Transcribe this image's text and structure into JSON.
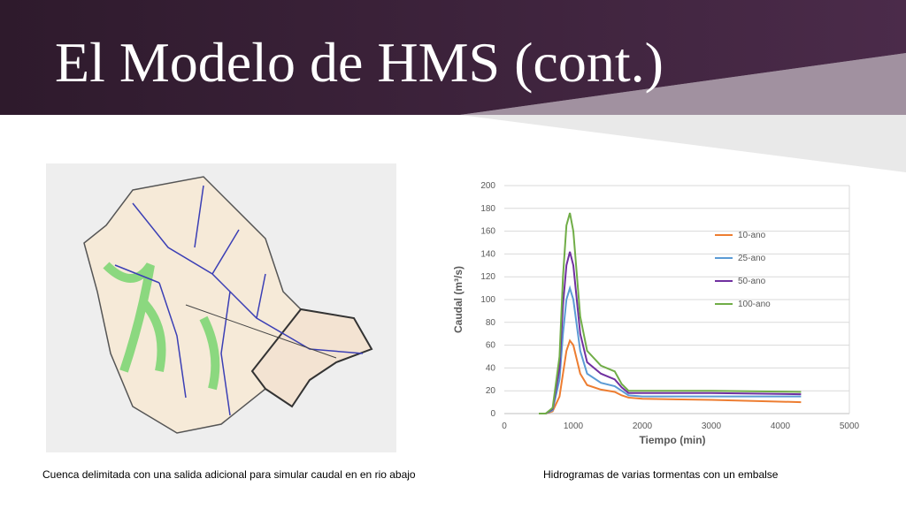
{
  "title": "El Modelo de HMS (cont.)",
  "captions": [
    "Cuenca delimitada con una salida adicional para simular caudal en en rio abajo",
    "Hidrogramas de varias tormentas con un embalse"
  ],
  "chart_data": {
    "type": "line",
    "x_label": "Tiempo (min)",
    "y_label": "Caudal (m³/s)",
    "x": [
      500,
      600,
      700,
      800,
      850,
      900,
      950,
      1000,
      1100,
      1200,
      1400,
      1600,
      1700,
      1800,
      2000,
      3000,
      4300
    ],
    "series": [
      {
        "name": "10-ano",
        "color": "#ed7d31",
        "values": [
          0,
          0,
          2,
          15,
          35,
          55,
          64,
          60,
          35,
          25,
          21,
          19,
          16,
          14,
          13,
          12,
          10
        ]
      },
      {
        "name": "25-ano",
        "color": "#5b9bd5",
        "values": [
          0,
          0,
          3,
          30,
          70,
          100,
          110,
          100,
          55,
          35,
          27,
          24,
          20,
          16,
          15,
          15,
          15
        ]
      },
      {
        "name": "50-ano",
        "color": "#7030a0",
        "values": [
          0,
          0,
          4,
          40,
          95,
          130,
          142,
          130,
          70,
          45,
          35,
          30,
          23,
          18,
          18,
          18,
          17
        ]
      },
      {
        "name": "100-ano",
        "color": "#70ad47",
        "values": [
          0,
          0,
          5,
          50,
          120,
          165,
          176,
          160,
          85,
          55,
          42,
          37,
          26,
          20,
          20,
          20,
          19
        ]
      }
    ],
    "xlim": [
      0,
      5000
    ],
    "xticks": [
      0,
      1000,
      2000,
      3000,
      4000,
      5000
    ],
    "ylim": [
      0,
      200
    ],
    "yticks": [
      0,
      20,
      40,
      60,
      80,
      100,
      120,
      140,
      160,
      180,
      200
    ],
    "grid": true,
    "legend": "upper right"
  }
}
